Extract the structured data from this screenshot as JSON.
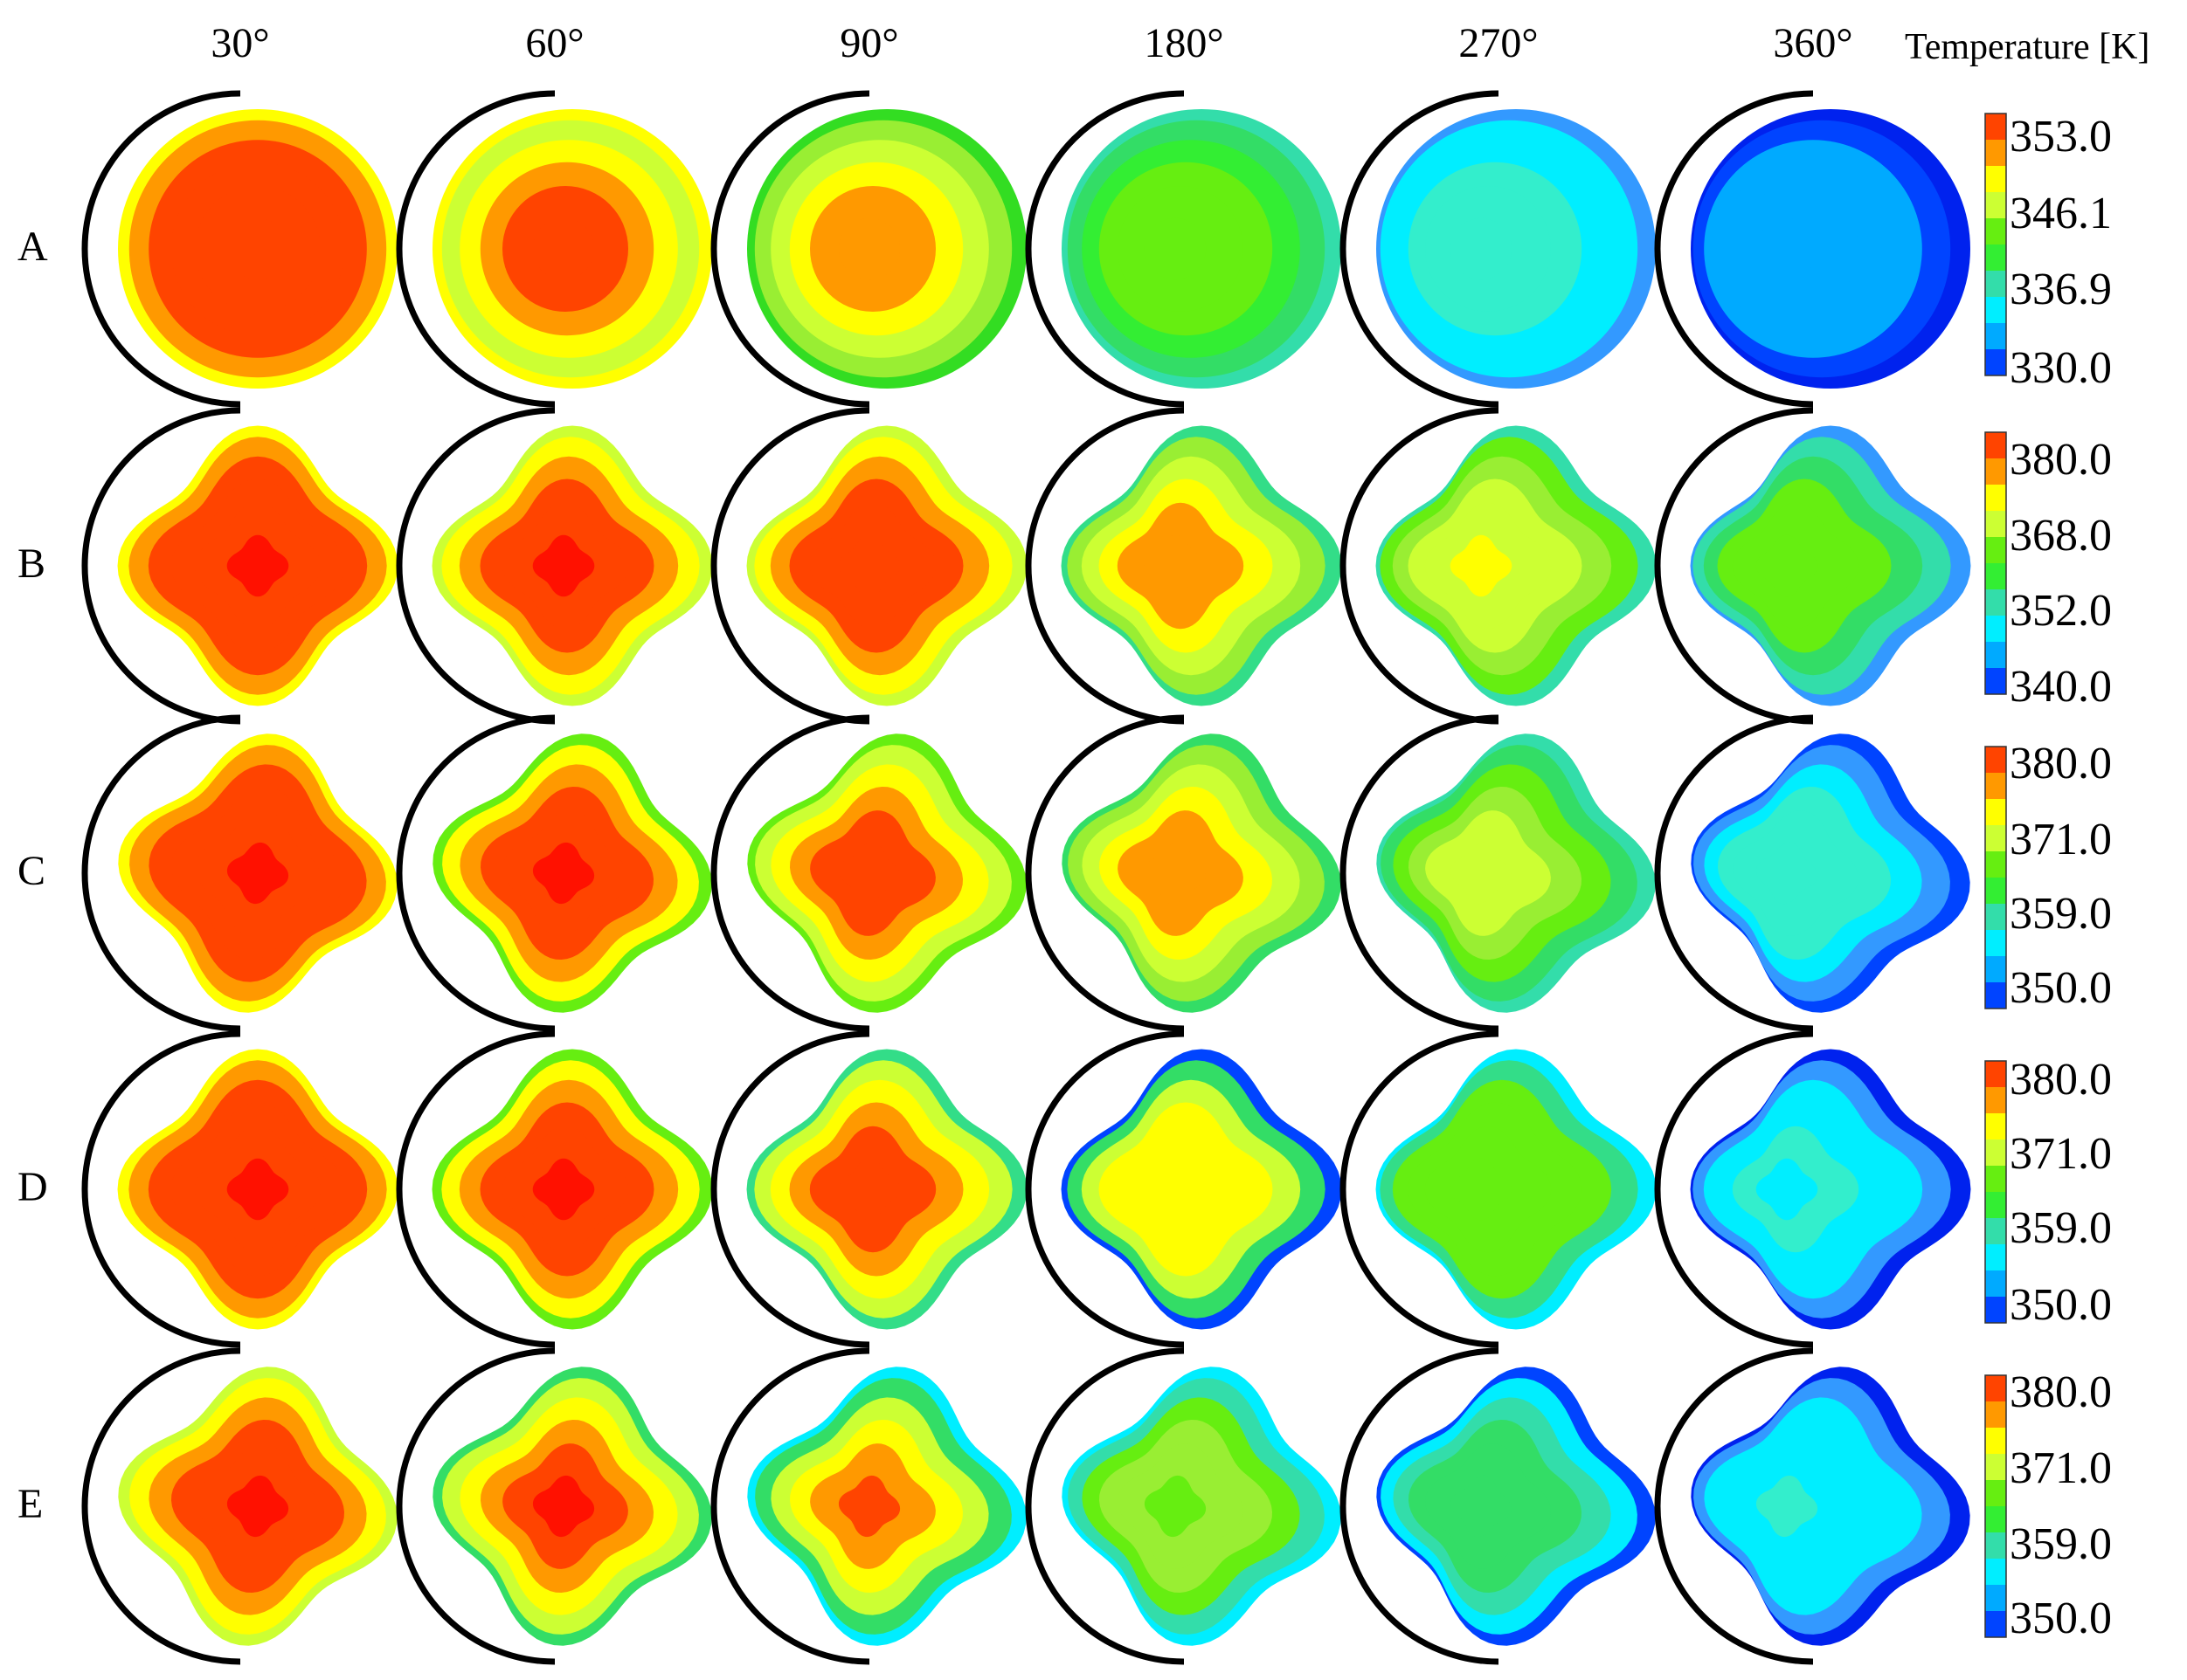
{
  "figure": {
    "legend_title": "Temperature [K]",
    "columns": [
      "30°",
      "60°",
      "90°",
      "180°",
      "270°",
      "360°"
    ],
    "rows": [
      {
        "label": "A",
        "shape": "circle",
        "colorbar_ticks": [
          "353.0",
          "346.1",
          "336.9",
          "330.0"
        ],
        "cells": [
          [
            "#ffff00",
            "#ff9900",
            "#ff4400",
            "#ff4400",
            "#ff4400",
            "#ff4400"
          ],
          [
            "#ffff00",
            "#ccff33",
            "#ffff00",
            "#ff9900",
            "#ff4400",
            "#ff4400"
          ],
          [
            "#33dd22",
            "#99ee33",
            "#ccff33",
            "#ffff00",
            "#ff9900",
            "#ff9900"
          ],
          [
            "#33ddaa",
            "#33dd66",
            "#33ee33",
            "#66ee11",
            "#66ee11",
            "#66ee11"
          ],
          [
            "#3399ff",
            "#00eeff",
            "#00eeff",
            "#33eecc",
            "#33eecc",
            "#33eecc"
          ],
          [
            "#0022ee",
            "#0044ff",
            "#00aaff",
            "#00aaff",
            "#00aaff",
            "#00aaff"
          ]
        ]
      },
      {
        "label": "B",
        "shape": "lobed",
        "colorbar_ticks": [
          "380.0",
          "368.0",
          "352.0",
          "340.0"
        ],
        "cells": [
          [
            "#ffff00",
            "#ff9900",
            "#ff4400",
            "#ff4400",
            "#ff4400",
            "#ff1100"
          ],
          [
            "#ccff33",
            "#ffff00",
            "#ff9900",
            "#ff4400",
            "#ff4400",
            "#ff1100"
          ],
          [
            "#ccff33",
            "#ffff00",
            "#ff9900",
            "#ff4400",
            "#ff4400",
            "#ff4400"
          ],
          [
            "#33dd88",
            "#99ee33",
            "#ccff33",
            "#ffff00",
            "#ff9900",
            "#ff9900"
          ],
          [
            "#33ddaa",
            "#66ee11",
            "#99ee33",
            "#ccff33",
            "#ccff33",
            "#ffff00"
          ],
          [
            "#3399ff",
            "#33ddaa",
            "#33dd66",
            "#66ee11",
            "#66ee11",
            "#66ee11"
          ]
        ]
      },
      {
        "label": "C",
        "shape": "lobed",
        "colorbar_ticks": [
          "380.0",
          "371.0",
          "359.0",
          "350.0"
        ],
        "cells": [
          [
            "#ffff00",
            "#ff9900",
            "#ff4400",
            "#ff4400",
            "#ff4400",
            "#ff1100"
          ],
          [
            "#66ee11",
            "#ffff00",
            "#ff9900",
            "#ff4400",
            "#ff4400",
            "#ff1100"
          ],
          [
            "#66ee11",
            "#ccff33",
            "#ffff00",
            "#ff9900",
            "#ff4400",
            "#ff4400"
          ],
          [
            "#33dd66",
            "#99ee33",
            "#ccff33",
            "#ffff00",
            "#ff9900",
            "#ff9900"
          ],
          [
            "#33ddaa",
            "#33dd66",
            "#66ee11",
            "#99ee33",
            "#ccff33",
            "#ccff33"
          ],
          [
            "#0044ff",
            "#3399ff",
            "#00eeff",
            "#33eecc",
            "#33eecc",
            "#33eecc"
          ]
        ]
      },
      {
        "label": "D",
        "shape": "lobed",
        "colorbar_ticks": [
          "380.0",
          "371.0",
          "359.0",
          "350.0"
        ],
        "cells": [
          [
            "#ffff00",
            "#ff9900",
            "#ff4400",
            "#ff4400",
            "#ff4400",
            "#ff1100"
          ],
          [
            "#66ee11",
            "#ffff00",
            "#ff9900",
            "#ff4400",
            "#ff4400",
            "#ff1100"
          ],
          [
            "#33dd88",
            "#ccff33",
            "#ffff00",
            "#ff9900",
            "#ff4400",
            "#ff4400"
          ],
          [
            "#0044ff",
            "#33dd66",
            "#ccff33",
            "#ffff00",
            "#ffff00",
            "#ffff00"
          ],
          [
            "#00eeff",
            "#33dd88",
            "#66ee11",
            "#66ee11",
            "#66ee11",
            "#66ee11"
          ],
          [
            "#0022ee",
            "#3399ff",
            "#00eeff",
            "#00eeff",
            "#33eecc",
            "#00eeff"
          ]
        ]
      },
      {
        "label": "E",
        "shape": "lobed",
        "colorbar_ticks": [
          "380.0",
          "371.0",
          "359.0",
          "350.0"
        ],
        "cells": [
          [
            "#ccff33",
            "#ffff00",
            "#ff9900",
            "#ff4400",
            "#ff4400",
            "#ff1100"
          ],
          [
            "#33dd66",
            "#ccff33",
            "#ffff00",
            "#ff9900",
            "#ff4400",
            "#ff1100"
          ],
          [
            "#00eeff",
            "#33dd66",
            "#ccff33",
            "#ffff00",
            "#ff9900",
            "#ff4400"
          ],
          [
            "#00eeff",
            "#33ddaa",
            "#66ee11",
            "#99ee33",
            "#99ee33",
            "#66ee11"
          ],
          [
            "#0044ff",
            "#00eeff",
            "#33ddaa",
            "#33dd66",
            "#33dd66",
            "#33dd66"
          ],
          [
            "#0022ee",
            "#3399ff",
            "#00eeff",
            "#00eeff",
            "#00eeff",
            "#33eecc"
          ]
        ]
      }
    ],
    "colorbar_colors": [
      "#ff4400",
      "#ff9900",
      "#ffff00",
      "#ccff33",
      "#66ee11",
      "#33ee33",
      "#33ddaa",
      "#00eeff",
      "#00aaff",
      "#0044ff"
    ]
  }
}
